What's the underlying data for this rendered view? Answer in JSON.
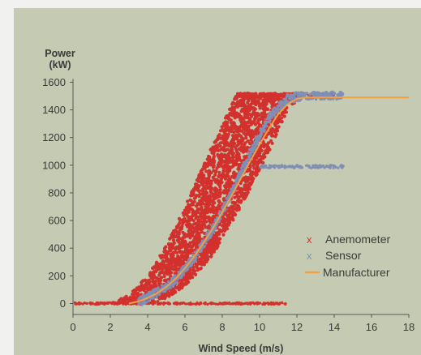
{
  "colors": {
    "panel_bg": "#c5cbb2",
    "outer_bg": "#f1f1f0",
    "anemometer": "#d2312d",
    "sensor": "#7f8fb6",
    "manufacturer": "#f0a040",
    "axis": "#555555",
    "text": "#3a3a3a"
  },
  "chart_data": {
    "type": "scatter",
    "title": "",
    "ylabel_line1": "Power",
    "ylabel_line2": "(kW)",
    "xlabel": "Wind Speed (m/s)",
    "xlim": [
      0,
      18
    ],
    "ylim": [
      -50,
      1620
    ],
    "x_ticks": [
      0,
      2,
      4,
      6,
      8,
      10,
      12,
      14,
      16,
      18
    ],
    "y_ticks": [
      0,
      200,
      400,
      600,
      800,
      1000,
      1200,
      1400,
      1600
    ],
    "grid": false,
    "legend_position": "right-center",
    "legend": [
      {
        "name": "Anemometer",
        "marker": "x",
        "color": "#d2312d"
      },
      {
        "name": "Sensor",
        "marker": "x",
        "color": "#7f8fb6"
      },
      {
        "name": "Manufacturer",
        "marker": "line",
        "color": "#f0a040"
      }
    ],
    "series": [
      {
        "name": "Anemometer",
        "kind": "scatter-cloud",
        "color": "#d2312d",
        "band_left_edge": [
          [
            2.0,
            0
          ],
          [
            3.0,
            60
          ],
          [
            4.0,
            200
          ],
          [
            5.0,
            420
          ],
          [
            6.0,
            700
          ],
          [
            7.0,
            1000
          ],
          [
            8.0,
            1300
          ],
          [
            8.8,
            1520
          ]
        ],
        "band_right_edge": [
          [
            4.5,
            0
          ],
          [
            6.0,
            120
          ],
          [
            7.5,
            350
          ],
          [
            9.0,
            700
          ],
          [
            10.5,
            1100
          ],
          [
            11.5,
            1400
          ],
          [
            12.5,
            1520
          ]
        ],
        "rated_plateau": {
          "x": [
            8.8,
            14.0
          ],
          "y": 1520
        },
        "zero_line": {
          "x": [
            0,
            11.5
          ],
          "y": 0
        }
      },
      {
        "name": "Sensor",
        "kind": "scatter-band",
        "color": "#7f8fb6",
        "center": [
          [
            3.5,
            10
          ],
          [
            4.5,
            80
          ],
          [
            5.5,
            170
          ],
          [
            6.5,
            330
          ],
          [
            7.5,
            540
          ],
          [
            8.5,
            800
          ],
          [
            9.5,
            1090
          ],
          [
            10.5,
            1340
          ],
          [
            11.5,
            1480
          ],
          [
            12.5,
            1510
          ],
          [
            14.5,
            1510
          ]
        ],
        "secondary_plateau": {
          "x": [
            10.0,
            14.5
          ],
          "y": 990
        }
      },
      {
        "name": "Manufacturer",
        "kind": "line",
        "color": "#f0a040",
        "x": [
          3,
          3.5,
          4,
          4.5,
          5,
          5.5,
          6,
          6.5,
          7,
          7.5,
          8,
          8.5,
          9,
          9.5,
          10,
          10.5,
          11,
          11.5,
          12,
          12.5,
          13,
          14,
          15,
          16,
          17,
          18
        ],
        "y": [
          0,
          15,
          40,
          75,
          120,
          180,
          255,
          340,
          440,
          545,
          660,
          780,
          905,
          1030,
          1150,
          1265,
          1370,
          1440,
          1480,
          1490,
          1490,
          1490,
          1490,
          1490,
          1490,
          1490
        ]
      }
    ]
  }
}
